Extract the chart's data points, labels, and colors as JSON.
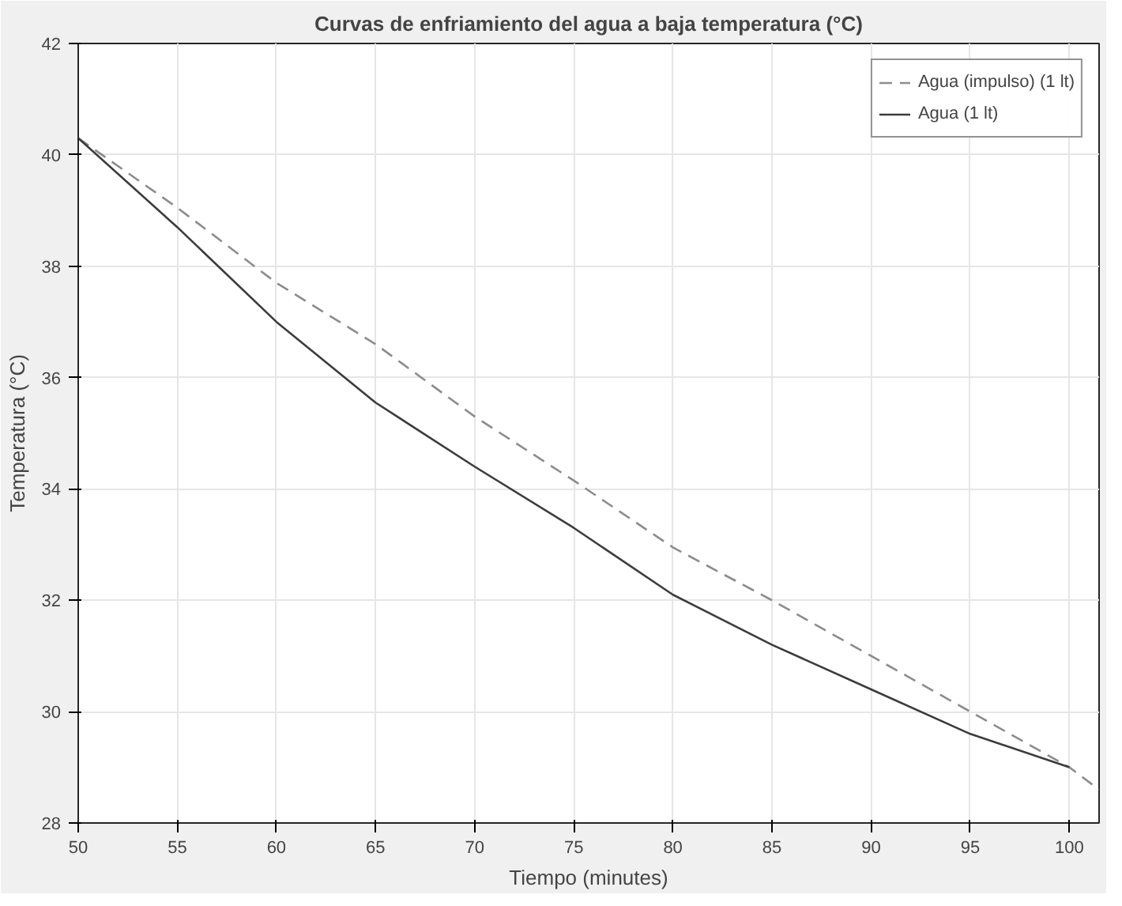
{
  "chart_data": {
    "type": "line",
    "title": "Curvas de enfriamiento del agua a baja temperatura (°C)",
    "xlabel": "Tiempo (minutes)",
    "ylabel": "Temperatura (°C)",
    "xlim": [
      50,
      101.5
    ],
    "xticks": [
      50,
      55,
      60,
      65,
      70,
      75,
      80,
      85,
      90,
      95,
      100
    ],
    "ylim": [
      28,
      42
    ],
    "yticks": [
      28,
      30,
      32,
      34,
      36,
      38,
      40,
      42
    ],
    "grid": true,
    "legend": "top right",
    "series": [
      {
        "name": "Agua (impulso) (1 lt)",
        "color": "#8c8c8c",
        "line_style": "dashed",
        "x": [
          50,
          55,
          60,
          65,
          70,
          75,
          80,
          85,
          90,
          95,
          100,
          101.5
        ],
        "values": [
          40.3,
          39.05,
          37.7,
          36.6,
          35.3,
          34.15,
          32.95,
          32.0,
          31.0,
          30.0,
          29.0,
          28.6
        ]
      },
      {
        "name": "Agua (1 lt)",
        "color": "#3c3c3c",
        "line_style": "solid",
        "x": [
          50,
          55,
          60,
          65,
          70,
          75,
          80,
          85,
          90,
          95,
          100
        ],
        "values": [
          40.3,
          38.7,
          37.0,
          35.55,
          34.4,
          33.3,
          32.1,
          31.2,
          30.4,
          29.6,
          29.0
        ]
      }
    ]
  }
}
